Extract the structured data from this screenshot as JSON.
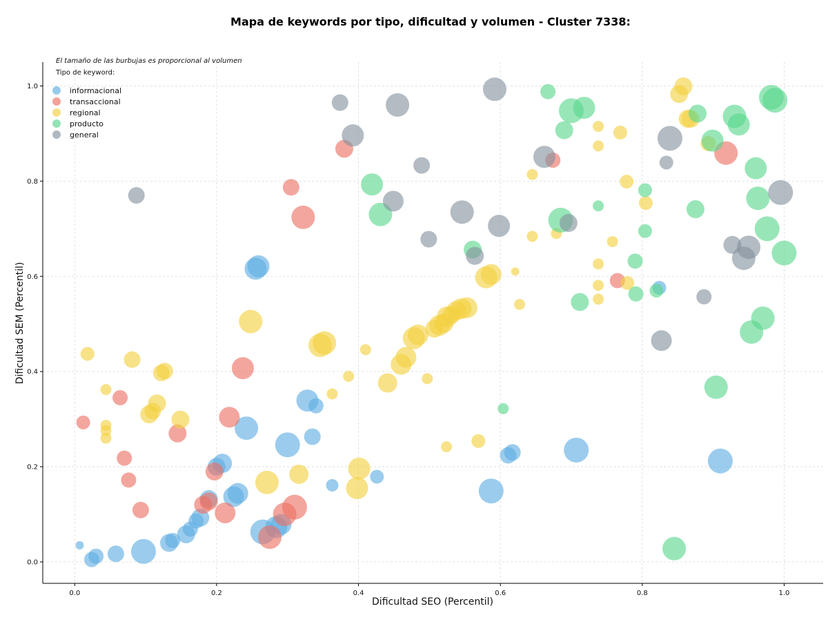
{
  "chart_data": {
    "type": "scatter",
    "title": "Mapa de keywords por tipo, dificultad y volumen - Cluster 7338:",
    "xlabel": "Dificultad SEO (Percentil)",
    "ylabel": "Dificultad SEM (Percentil)",
    "note": "El tamaño de las burbujas es proporcional al volumen",
    "legend_title": "Tipo de keyword:",
    "legend_position": "top-left",
    "xlim": [
      -0.045,
      1.055
    ],
    "ylim": [
      -0.045,
      1.05
    ],
    "xticks": [
      0.0,
      0.2,
      0.4,
      0.6,
      0.8,
      1.0
    ],
    "yticks": [
      0.0,
      0.2,
      0.4,
      0.6,
      0.8,
      1.0
    ],
    "xtick_labels": [
      "0.0",
      "0.2",
      "0.4",
      "0.6",
      "0.8",
      "1.0"
    ],
    "ytick_labels": [
      "0.0",
      "0.2",
      "0.4",
      "0.6",
      "0.8",
      "1.0"
    ],
    "grid": true,
    "series": [
      {
        "name": "informacional",
        "color": "#5dade2",
        "points": [
          {
            "x": 0.007,
            "y": 0.035,
            "v": 6
          },
          {
            "x": 0.024,
            "y": 0.005,
            "v": 11
          },
          {
            "x": 0.03,
            "y": 0.012,
            "v": 11
          },
          {
            "x": 0.058,
            "y": 0.017,
            "v": 12
          },
          {
            "x": 0.097,
            "y": 0.022,
            "v": 18
          },
          {
            "x": 0.133,
            "y": 0.04,
            "v": 13
          },
          {
            "x": 0.138,
            "y": 0.045,
            "v": 11
          },
          {
            "x": 0.157,
            "y": 0.058,
            "v": 13
          },
          {
            "x": 0.163,
            "y": 0.069,
            "v": 11
          },
          {
            "x": 0.171,
            "y": 0.086,
            "v": 11
          },
          {
            "x": 0.177,
            "y": 0.093,
            "v": 13
          },
          {
            "x": 0.189,
            "y": 0.132,
            "v": 13
          },
          {
            "x": 0.2,
            "y": 0.2,
            "v": 13
          },
          {
            "x": 0.208,
            "y": 0.207,
            "v": 14
          },
          {
            "x": 0.224,
            "y": 0.137,
            "v": 15
          },
          {
            "x": 0.23,
            "y": 0.144,
            "v": 15
          },
          {
            "x": 0.242,
            "y": 0.281,
            "v": 17
          },
          {
            "x": 0.255,
            "y": 0.616,
            "v": 16
          },
          {
            "x": 0.259,
            "y": 0.621,
            "v": 16
          },
          {
            "x": 0.265,
            "y": 0.063,
            "v": 18
          },
          {
            "x": 0.284,
            "y": 0.073,
            "v": 16
          },
          {
            "x": 0.291,
            "y": 0.079,
            "v": 15
          },
          {
            "x": 0.3,
            "y": 0.246,
            "v": 18
          },
          {
            "x": 0.328,
            "y": 0.339,
            "v": 16
          },
          {
            "x": 0.335,
            "y": 0.263,
            "v": 12
          },
          {
            "x": 0.34,
            "y": 0.328,
            "v": 11
          },
          {
            "x": 0.363,
            "y": 0.161,
            "v": 9
          },
          {
            "x": 0.426,
            "y": 0.179,
            "v": 10
          },
          {
            "x": 0.587,
            "y": 0.149,
            "v": 18
          },
          {
            "x": 0.611,
            "y": 0.224,
            "v": 12
          },
          {
            "x": 0.617,
            "y": 0.23,
            "v": 12
          },
          {
            "x": 0.707,
            "y": 0.235,
            "v": 18
          },
          {
            "x": 0.824,
            "y": 0.576,
            "v": 10
          },
          {
            "x": 0.91,
            "y": 0.212,
            "v": 18
          }
        ]
      },
      {
        "name": "transaccional",
        "color": "#ec7063",
        "points": [
          {
            "x": 0.012,
            "y": 0.293,
            "v": 10
          },
          {
            "x": 0.064,
            "y": 0.345,
            "v": 11
          },
          {
            "x": 0.07,
            "y": 0.218,
            "v": 11
          },
          {
            "x": 0.076,
            "y": 0.172,
            "v": 11
          },
          {
            "x": 0.093,
            "y": 0.109,
            "v": 12
          },
          {
            "x": 0.145,
            "y": 0.27,
            "v": 13
          },
          {
            "x": 0.181,
            "y": 0.12,
            "v": 13
          },
          {
            "x": 0.189,
            "y": 0.127,
            "v": 13
          },
          {
            "x": 0.197,
            "y": 0.19,
            "v": 13
          },
          {
            "x": 0.212,
            "y": 0.103,
            "v": 15
          },
          {
            "x": 0.218,
            "y": 0.304,
            "v": 15
          },
          {
            "x": 0.237,
            "y": 0.407,
            "v": 16
          },
          {
            "x": 0.275,
            "y": 0.052,
            "v": 17
          },
          {
            "x": 0.296,
            "y": 0.1,
            "v": 17
          },
          {
            "x": 0.305,
            "y": 0.787,
            "v": 12
          },
          {
            "x": 0.31,
            "y": 0.115,
            "v": 18
          },
          {
            "x": 0.322,
            "y": 0.724,
            "v": 17
          },
          {
            "x": 0.38,
            "y": 0.868,
            "v": 13
          },
          {
            "x": 0.674,
            "y": 0.844,
            "v": 11
          },
          {
            "x": 0.765,
            "y": 0.591,
            "v": 11
          },
          {
            "x": 0.918,
            "y": 0.859,
            "v": 17
          }
        ]
      },
      {
        "name": "regional",
        "color": "#f4d03f",
        "points": [
          {
            "x": 0.018,
            "y": 0.437,
            "v": 10
          },
          {
            "x": 0.044,
            "y": 0.362,
            "v": 8
          },
          {
            "x": 0.044,
            "y": 0.287,
            "v": 8
          },
          {
            "x": 0.044,
            "y": 0.276,
            "v": 8
          },
          {
            "x": 0.044,
            "y": 0.26,
            "v": 8
          },
          {
            "x": 0.081,
            "y": 0.425,
            "v": 12
          },
          {
            "x": 0.105,
            "y": 0.31,
            "v": 13
          },
          {
            "x": 0.11,
            "y": 0.317,
            "v": 12
          },
          {
            "x": 0.116,
            "y": 0.333,
            "v": 13
          },
          {
            "x": 0.122,
            "y": 0.397,
            "v": 12
          },
          {
            "x": 0.127,
            "y": 0.401,
            "v": 12
          },
          {
            "x": 0.149,
            "y": 0.299,
            "v": 13
          },
          {
            "x": 0.248,
            "y": 0.505,
            "v": 17
          },
          {
            "x": 0.271,
            "y": 0.167,
            "v": 17
          },
          {
            "x": 0.316,
            "y": 0.184,
            "v": 14
          },
          {
            "x": 0.346,
            "y": 0.455,
            "v": 17
          },
          {
            "x": 0.352,
            "y": 0.46,
            "v": 17
          },
          {
            "x": 0.363,
            "y": 0.353,
            "v": 8
          },
          {
            "x": 0.386,
            "y": 0.39,
            "v": 8
          },
          {
            "x": 0.398,
            "y": 0.155,
            "v": 16
          },
          {
            "x": 0.401,
            "y": 0.196,
            "v": 16
          },
          {
            "x": 0.41,
            "y": 0.446,
            "v": 8
          },
          {
            "x": 0.441,
            "y": 0.376,
            "v": 14
          },
          {
            "x": 0.46,
            "y": 0.415,
            "v": 15
          },
          {
            "x": 0.467,
            "y": 0.43,
            "v": 15
          },
          {
            "x": 0.478,
            "y": 0.47,
            "v": 16
          },
          {
            "x": 0.484,
            "y": 0.477,
            "v": 15
          },
          {
            "x": 0.497,
            "y": 0.385,
            "v": 8
          },
          {
            "x": 0.507,
            "y": 0.49,
            "v": 13
          },
          {
            "x": 0.514,
            "y": 0.497,
            "v": 15
          },
          {
            "x": 0.52,
            "y": 0.501,
            "v": 14
          },
          {
            "x": 0.525,
            "y": 0.515,
            "v": 15
          },
          {
            "x": 0.531,
            "y": 0.519,
            "v": 13
          },
          {
            "x": 0.538,
            "y": 0.528,
            "v": 14
          },
          {
            "x": 0.545,
            "y": 0.532,
            "v": 15
          },
          {
            "x": 0.553,
            "y": 0.534,
            "v": 15
          },
          {
            "x": 0.524,
            "y": 0.242,
            "v": 8
          },
          {
            "x": 0.569,
            "y": 0.254,
            "v": 10
          },
          {
            "x": 0.58,
            "y": 0.598,
            "v": 16
          },
          {
            "x": 0.587,
            "y": 0.604,
            "v": 15
          },
          {
            "x": 0.621,
            "y": 0.61,
            "v": 6
          },
          {
            "x": 0.627,
            "y": 0.541,
            "v": 8
          },
          {
            "x": 0.645,
            "y": 0.814,
            "v": 8
          },
          {
            "x": 0.645,
            "y": 0.684,
            "v": 8
          },
          {
            "x": 0.679,
            "y": 0.69,
            "v": 8
          },
          {
            "x": 0.738,
            "y": 0.915,
            "v": 8
          },
          {
            "x": 0.738,
            "y": 0.874,
            "v": 8
          },
          {
            "x": 0.738,
            "y": 0.626,
            "v": 8
          },
          {
            "x": 0.738,
            "y": 0.581,
            "v": 8
          },
          {
            "x": 0.738,
            "y": 0.552,
            "v": 8
          },
          {
            "x": 0.758,
            "y": 0.673,
            "v": 8
          },
          {
            "x": 0.769,
            "y": 0.902,
            "v": 10
          },
          {
            "x": 0.778,
            "y": 0.799,
            "v": 10
          },
          {
            "x": 0.779,
            "y": 0.586,
            "v": 10
          },
          {
            "x": 0.805,
            "y": 0.754,
            "v": 10
          },
          {
            "x": 0.852,
            "y": 0.983,
            "v": 13
          },
          {
            "x": 0.858,
            "y": 0.999,
            "v": 13
          },
          {
            "x": 0.864,
            "y": 0.931,
            "v": 13
          },
          {
            "x": 0.868,
            "y": 0.931,
            "v": 13
          },
          {
            "x": 0.893,
            "y": 0.879,
            "v": 11
          }
        ]
      },
      {
        "name": "producto",
        "color": "#58d68d",
        "points": [
          {
            "x": 0.419,
            "y": 0.793,
            "v": 16
          },
          {
            "x": 0.431,
            "y": 0.73,
            "v": 17
          },
          {
            "x": 0.561,
            "y": 0.656,
            "v": 13
          },
          {
            "x": 0.604,
            "y": 0.322,
            "v": 8
          },
          {
            "x": 0.667,
            "y": 0.988,
            "v": 11
          },
          {
            "x": 0.685,
            "y": 0.718,
            "v": 18
          },
          {
            "x": 0.69,
            "y": 0.907,
            "v": 13
          },
          {
            "x": 0.7,
            "y": 0.948,
            "v": 18
          },
          {
            "x": 0.712,
            "y": 0.546,
            "v": 13
          },
          {
            "x": 0.718,
            "y": 0.954,
            "v": 16
          },
          {
            "x": 0.738,
            "y": 0.748,
            "v": 8
          },
          {
            "x": 0.79,
            "y": 0.632,
            "v": 11
          },
          {
            "x": 0.791,
            "y": 0.563,
            "v": 11
          },
          {
            "x": 0.804,
            "y": 0.695,
            "v": 10
          },
          {
            "x": 0.804,
            "y": 0.781,
            "v": 10
          },
          {
            "x": 0.82,
            "y": 0.57,
            "v": 10
          },
          {
            "x": 0.845,
            "y": 0.028,
            "v": 17
          },
          {
            "x": 0.875,
            "y": 0.741,
            "v": 13
          },
          {
            "x": 0.878,
            "y": 0.942,
            "v": 13
          },
          {
            "x": 0.899,
            "y": 0.885,
            "v": 16
          },
          {
            "x": 0.904,
            "y": 0.367,
            "v": 17
          },
          {
            "x": 0.93,
            "y": 0.936,
            "v": 17
          },
          {
            "x": 0.936,
            "y": 0.919,
            "v": 16
          },
          {
            "x": 0.954,
            "y": 0.483,
            "v": 17
          },
          {
            "x": 0.96,
            "y": 0.827,
            "v": 16
          },
          {
            "x": 0.963,
            "y": 0.764,
            "v": 17
          },
          {
            "x": 0.97,
            "y": 0.512,
            "v": 17
          },
          {
            "x": 0.976,
            "y": 0.7,
            "v": 18
          },
          {
            "x": 0.982,
            "y": 0.976,
            "v": 18
          },
          {
            "x": 0.987,
            "y": 0.97,
            "v": 18
          },
          {
            "x": 1.0,
            "y": 0.649,
            "v": 18
          }
        ]
      },
      {
        "name": "general",
        "color": "#85929e",
        "points": [
          {
            "x": 0.087,
            "y": 0.77,
            "v": 12
          },
          {
            "x": 0.374,
            "y": 0.965,
            "v": 12
          },
          {
            "x": 0.392,
            "y": 0.896,
            "v": 16
          },
          {
            "x": 0.449,
            "y": 0.758,
            "v": 15
          },
          {
            "x": 0.455,
            "y": 0.96,
            "v": 17
          },
          {
            "x": 0.489,
            "y": 0.833,
            "v": 12
          },
          {
            "x": 0.499,
            "y": 0.678,
            "v": 12
          },
          {
            "x": 0.546,
            "y": 0.735,
            "v": 17
          },
          {
            "x": 0.564,
            "y": 0.643,
            "v": 13
          },
          {
            "x": 0.592,
            "y": 0.993,
            "v": 17
          },
          {
            "x": 0.598,
            "y": 0.706,
            "v": 16
          },
          {
            "x": 0.662,
            "y": 0.851,
            "v": 16
          },
          {
            "x": 0.696,
            "y": 0.712,
            "v": 13
          },
          {
            "x": 0.827,
            "y": 0.465,
            "v": 15
          },
          {
            "x": 0.834,
            "y": 0.839,
            "v": 10
          },
          {
            "x": 0.839,
            "y": 0.89,
            "v": 18
          },
          {
            "x": 0.887,
            "y": 0.557,
            "v": 11
          },
          {
            "x": 0.927,
            "y": 0.666,
            "v": 13
          },
          {
            "x": 0.943,
            "y": 0.638,
            "v": 17
          },
          {
            "x": 0.95,
            "y": 0.661,
            "v": 17
          },
          {
            "x": 0.995,
            "y": 0.776,
            "v": 18
          }
        ]
      }
    ]
  }
}
